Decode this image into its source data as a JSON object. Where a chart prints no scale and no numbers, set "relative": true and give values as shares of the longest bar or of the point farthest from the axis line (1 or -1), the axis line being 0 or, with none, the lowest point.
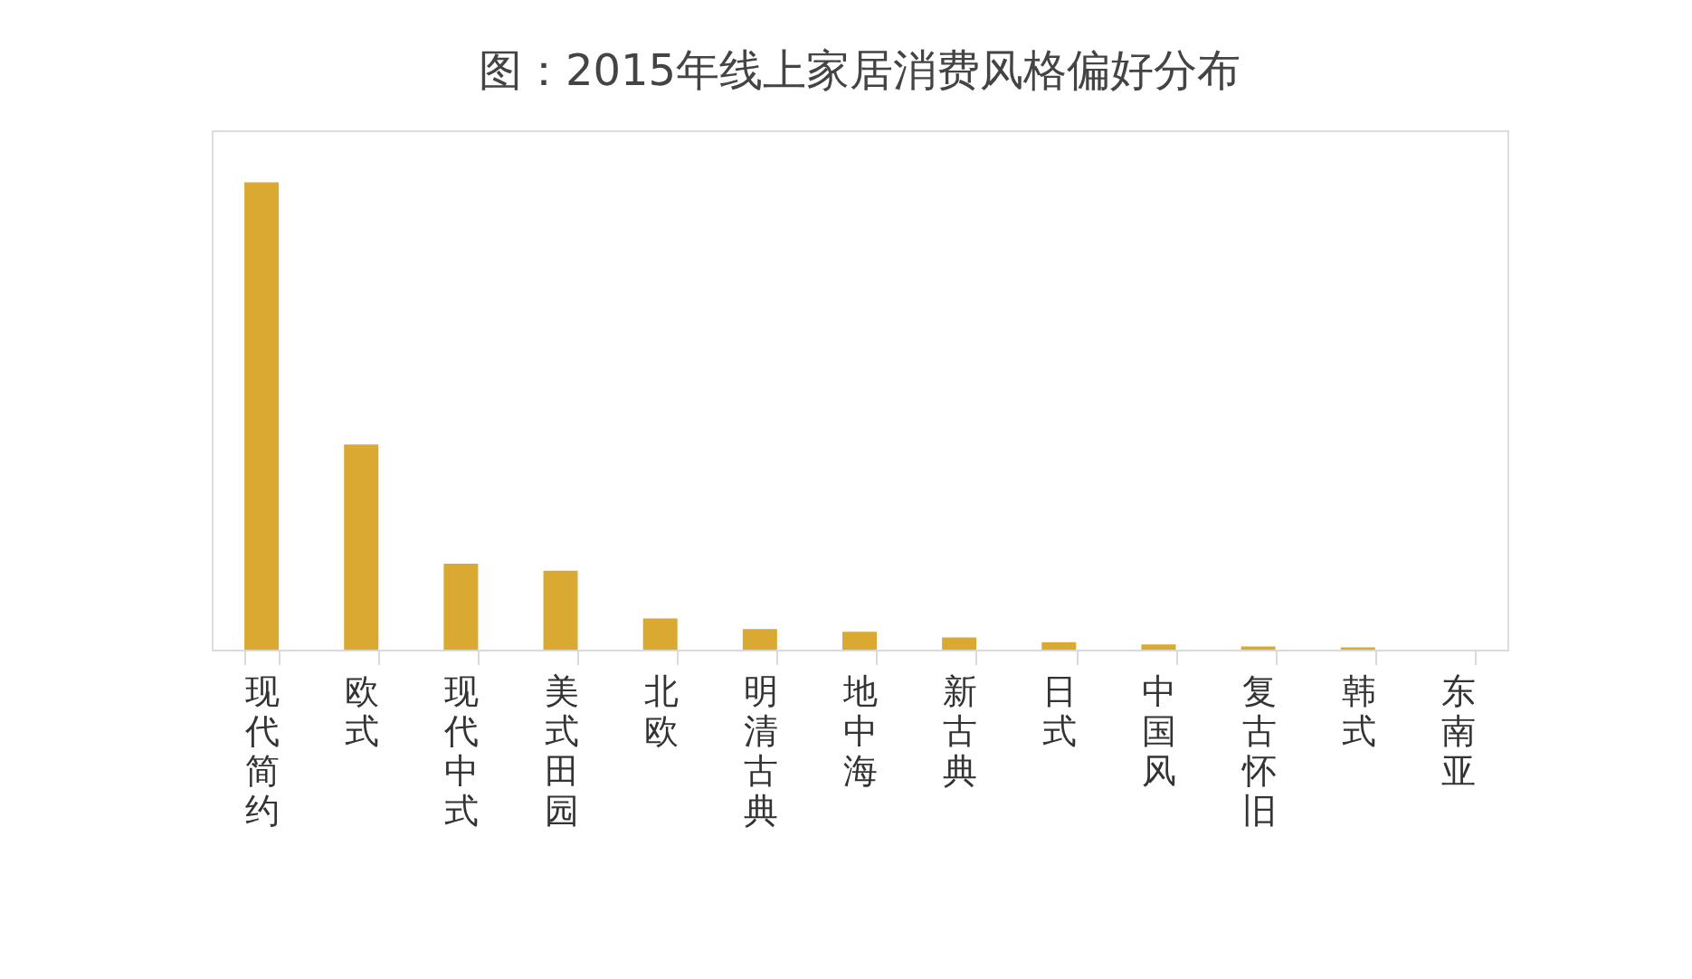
{
  "chart_data": {
    "type": "bar",
    "title": "图：2015年线上家居消费风格偏好分布",
    "relative": true,
    "categories": [
      "现代简约",
      "欧式",
      "现代中式",
      "美式田园",
      "北欧",
      "明清古典",
      "地中海",
      "新古典",
      "日式",
      "中国风",
      "复古怀旧",
      "韩式",
      "东南亚"
    ],
    "values": [
      1,
      0.439,
      0.184,
      0.169,
      0.067,
      0.044,
      0.038,
      0.026,
      0.016,
      0.011,
      0.007,
      0.005,
      0
    ],
    "color": "#d9a931",
    "grid": false
  }
}
